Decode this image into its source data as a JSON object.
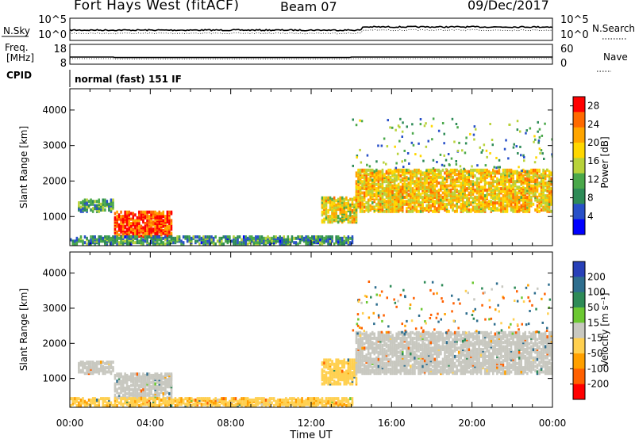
{
  "header": {
    "station": "Fort Hays West (fitACF)",
    "beam": "Beam 07",
    "date": "09/Dec/2017"
  },
  "noise_panel": {
    "left_label": "N.Sky",
    "right_label": "N.Search",
    "ticks": [
      "10^5",
      "10^0"
    ]
  },
  "freq_panel": {
    "left_label_1": "Freq.",
    "left_label_2": "[MHz]",
    "left_ticks": [
      "18",
      "8"
    ],
    "right_label": "Nave",
    "right_ticks": [
      "60",
      "0"
    ]
  },
  "cpid": {
    "label": "CPID",
    "mode": "normal (fast) 151 IF"
  },
  "chart_data": [
    {
      "type": "heatmap",
      "title": "",
      "xlabel": "",
      "ylabel": "Slant Range [km]",
      "x_ticks": [
        "00:00",
        "04:00",
        "08:00",
        "12:00",
        "16:00",
        "20:00",
        "00:00"
      ],
      "xlim_hours": [
        0,
        24
      ],
      "ylim_km": [
        180,
        4600
      ],
      "y_ticks": [
        1000,
        2000,
        3000,
        4000
      ],
      "colorbar": {
        "label": "Power [dB]",
        "ticks": [
          4,
          8,
          12,
          16,
          20,
          24,
          28
        ],
        "range": [
          0,
          30
        ],
        "colors": [
          "#0000ff",
          "#2850c8",
          "#2e8b57",
          "#4aa84a",
          "#b8d23a",
          "#ffd700",
          "#ffa500",
          "#ff6a00",
          "#ff0000"
        ]
      },
      "regions": [
        {
          "t0": 0.4,
          "t1": 2.2,
          "r0": 1100,
          "r1": 1450,
          "value": 10
        },
        {
          "t0": 2.2,
          "t1": 5.0,
          "r0": 400,
          "r1": 1100,
          "value": 26
        },
        {
          "t0": 0.0,
          "t1": 14.0,
          "r0": 180,
          "r1": 400,
          "value": 9
        },
        {
          "t0": 12.5,
          "t1": 14.2,
          "r0": 800,
          "r1": 1500,
          "value": 18
        },
        {
          "t0": 14.2,
          "t1": 24.0,
          "r0": 1100,
          "r1": 2300,
          "value": 19
        }
      ]
    },
    {
      "type": "heatmap",
      "title": "",
      "xlabel": "Time UT",
      "ylabel": "Slant Range [km]",
      "x_ticks": [
        "00:00",
        "04:00",
        "08:00",
        "12:00",
        "16:00",
        "20:00",
        "00:00"
      ],
      "xlim_hours": [
        0,
        24
      ],
      "ylim_km": [
        180,
        4600
      ],
      "y_ticks": [
        1000,
        2000,
        3000,
        4000
      ],
      "colorbar": {
        "label": "Velocity [m s⁻¹]",
        "ticks": [
          "200",
          "100",
          "50",
          "15",
          "-15",
          "-50",
          "-100",
          "-200"
        ],
        "colors": [
          "#2840b8",
          "#2e6e8e",
          "#2e8b57",
          "#6cc832",
          "#c8c8c0",
          "#ffd050",
          "#ffa000",
          "#ff6000",
          "#ff0000"
        ]
      },
      "regions": [
        {
          "t0": 0.4,
          "t1": 2.2,
          "r0": 1100,
          "r1": 1450,
          "value": 0
        },
        {
          "t0": 2.2,
          "t1": 5.0,
          "r0": 400,
          "r1": 1100,
          "value": 0
        },
        {
          "t0": 0.0,
          "t1": 14.0,
          "r0": 180,
          "r1": 400,
          "value": -40
        },
        {
          "t0": 12.5,
          "t1": 14.2,
          "r0": 800,
          "r1": 1500,
          "value": -30
        },
        {
          "t0": 14.2,
          "t1": 24.0,
          "r0": 1100,
          "r1": 2300,
          "value": 0
        }
      ]
    }
  ]
}
